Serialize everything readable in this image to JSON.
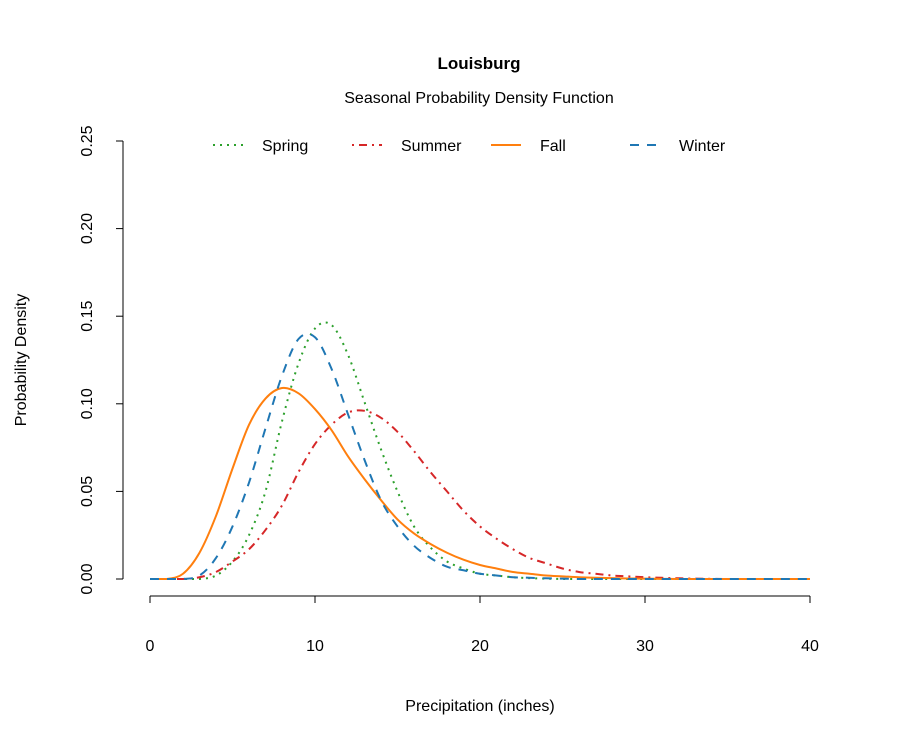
{
  "chart_data": {
    "type": "line",
    "title": "Louisburg",
    "subtitle": "Seasonal Probability Density Function",
    "xlabel": "Precipitation (inches)",
    "ylabel": "Probability Density",
    "xlim": [
      0,
      40
    ],
    "ylim": [
      0,
      0.25
    ],
    "xticks": [
      "0",
      "10",
      "20",
      "30",
      "40"
    ],
    "yticks": [
      "0.00",
      "0.05",
      "0.10",
      "0.15",
      "0.20",
      "0.25"
    ],
    "grid": false,
    "legend_position": "top",
    "x": [
      0,
      1,
      2,
      3,
      4,
      5,
      6,
      7,
      8,
      9,
      10,
      11,
      12,
      13,
      14,
      15,
      16,
      17,
      18,
      19,
      20,
      21,
      22,
      23,
      24,
      25,
      26,
      27,
      28,
      29,
      30,
      31,
      32,
      33,
      34,
      35,
      36,
      37,
      38,
      39,
      40
    ],
    "series": [
      {
        "name": "Spring",
        "color": "#2ca02c",
        "dash": "dotted",
        "values": [
          0,
          0,
          0,
          0,
          0.002,
          0.01,
          0.025,
          0.05,
          0.09,
          0.123,
          0.143,
          0.145,
          0.128,
          0.101,
          0.074,
          0.05,
          0.03,
          0.018,
          0.01,
          0.006,
          0.003,
          0.002,
          0.001,
          0.0005,
          0.0002,
          0,
          0,
          0,
          0,
          0,
          0,
          0,
          0,
          0,
          0,
          0,
          0,
          0,
          0,
          0,
          0
        ]
      },
      {
        "name": "Summer",
        "color": "#d62728",
        "dash": "dotdash",
        "values": [
          0,
          0,
          0,
          0.001,
          0.004,
          0.01,
          0.017,
          0.028,
          0.042,
          0.061,
          0.077,
          0.088,
          0.095,
          0.096,
          0.092,
          0.084,
          0.073,
          0.061,
          0.05,
          0.039,
          0.03,
          0.023,
          0.017,
          0.012,
          0.009,
          0.006,
          0.004,
          0.003,
          0.002,
          0.0015,
          0.001,
          0.0007,
          0.0004,
          0.0002,
          0.0001,
          0,
          0,
          0,
          0,
          0,
          0
        ]
      },
      {
        "name": "Fall",
        "color": "#ff7f0e",
        "dash": "solid",
        "values": [
          0,
          0,
          0.003,
          0.015,
          0.036,
          0.063,
          0.088,
          0.103,
          0.109,
          0.106,
          0.097,
          0.085,
          0.07,
          0.057,
          0.045,
          0.034,
          0.026,
          0.02,
          0.015,
          0.011,
          0.008,
          0.006,
          0.004,
          0.003,
          0.002,
          0.0015,
          0.001,
          0.0007,
          0.0005,
          0.0003,
          0.0002,
          0.0001,
          0,
          0,
          0,
          0,
          0,
          0,
          0,
          0,
          0
        ]
      },
      {
        "name": "Winter",
        "color": "#1f77b4",
        "dash": "dashed",
        "values": [
          0,
          0,
          0,
          0.002,
          0.012,
          0.03,
          0.055,
          0.086,
          0.116,
          0.137,
          0.138,
          0.12,
          0.094,
          0.068,
          0.045,
          0.03,
          0.019,
          0.012,
          0.007,
          0.005,
          0.003,
          0.002,
          0.001,
          0.0007,
          0.0004,
          0.0002,
          0,
          0,
          0,
          0,
          0,
          0,
          0,
          0,
          0,
          0,
          0,
          0,
          0,
          0,
          0
        ]
      }
    ]
  }
}
